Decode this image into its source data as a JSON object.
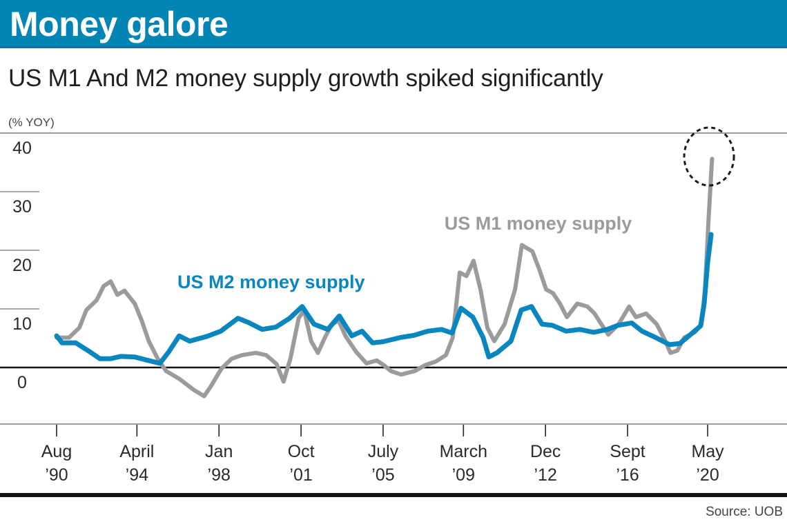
{
  "header": {
    "title": "Money galore",
    "color": "#0284b5"
  },
  "subtitle": "US M1 And M2 money supply growth spiked significantly",
  "source": "Source: UOB",
  "chart_data": {
    "type": "line",
    "title": "Money galore",
    "subtitle": "US M1 And M2 money supply growth spiked significantly",
    "xlabel": "",
    "ylabel": "(% YOY)",
    "ylim": [
      -10,
      40
    ],
    "xlim": [
      1989.5,
      2022.2
    ],
    "yticks": [
      0,
      10,
      20,
      30,
      40
    ],
    "ytick_labels": [
      "0",
      "10",
      "20",
      "30",
      "40"
    ],
    "xticks": [
      {
        "year": 1990.58,
        "line1": "Aug",
        "line2": "’90"
      },
      {
        "year": 1994.25,
        "line1": "April",
        "line2": "’94"
      },
      {
        "year": 1998.0,
        "line1": "Jan",
        "line2": "’98"
      },
      {
        "year": 2001.75,
        "line1": "Oct",
        "line2": "’01"
      },
      {
        "year": 2005.5,
        "line1": "July",
        "line2": "’05"
      },
      {
        "year": 2009.17,
        "line1": "March",
        "line2": "’09"
      },
      {
        "year": 2012.92,
        "line1": "Dec",
        "line2": "’12"
      },
      {
        "year": 2016.67,
        "line1": "Sept",
        "line2": "’16"
      },
      {
        "year": 2020.33,
        "line1": "May",
        "line2": "’20"
      }
    ],
    "grid": false,
    "annotation": {
      "type": "dashed-circle",
      "target": "US M1 money supply peak",
      "year": 2020.33,
      "value": 36
    },
    "series": [
      {
        "name": "US M1 money supply",
        "color": "#9b9b9b",
        "label_year": 2008.3,
        "label_value": 24.5,
        "points": [
          [
            1990.58,
            5.1
          ],
          [
            1991.15,
            5.1
          ],
          [
            1991.62,
            6.8
          ],
          [
            1991.94,
            9.8
          ],
          [
            1992.41,
            11.5
          ],
          [
            1992.73,
            13.9
          ],
          [
            1993.05,
            14.7
          ],
          [
            1993.36,
            12.4
          ],
          [
            1993.68,
            13.1
          ],
          [
            1994.15,
            10.9
          ],
          [
            1994.47,
            8.0
          ],
          [
            1994.79,
            4.5
          ],
          [
            1995.2,
            1.5
          ],
          [
            1995.58,
            -0.6
          ],
          [
            1996.21,
            -2.0
          ],
          [
            1996.84,
            -3.8
          ],
          [
            1997.32,
            -4.9
          ],
          [
            1997.63,
            -3.2
          ],
          [
            1998.11,
            -0.2
          ],
          [
            1998.58,
            1.5
          ],
          [
            1999.05,
            2.1
          ],
          [
            1999.68,
            2.5
          ],
          [
            2000.16,
            2.1
          ],
          [
            2000.63,
            0.6
          ],
          [
            2000.95,
            -2.4
          ],
          [
            2001.26,
            1.5
          ],
          [
            2001.64,
            8.4
          ],
          [
            2001.89,
            9.8
          ],
          [
            2002.21,
            4.5
          ],
          [
            2002.52,
            2.5
          ],
          [
            2002.84,
            5.1
          ],
          [
            2003.16,
            7.4
          ],
          [
            2003.47,
            8.0
          ],
          [
            2003.79,
            5.3
          ],
          [
            2004.26,
            2.7
          ],
          [
            2004.74,
            0.7
          ],
          [
            2005.21,
            1.2
          ],
          [
            2005.53,
            0.4
          ],
          [
            2005.85,
            -0.6
          ],
          [
            2006.32,
            -1.2
          ],
          [
            2006.95,
            -0.6
          ],
          [
            2007.42,
            0.4
          ],
          [
            2007.9,
            1.0
          ],
          [
            2008.37,
            2.1
          ],
          [
            2008.68,
            5.1
          ],
          [
            2009.0,
            16.2
          ],
          [
            2009.31,
            15.6
          ],
          [
            2009.63,
            18.2
          ],
          [
            2009.95,
            13.3
          ],
          [
            2010.26,
            6.8
          ],
          [
            2010.58,
            4.5
          ],
          [
            2011.05,
            7.4
          ],
          [
            2011.53,
            13.3
          ],
          [
            2011.84,
            20.9
          ],
          [
            2012.32,
            19.8
          ],
          [
            2012.63,
            16.8
          ],
          [
            2012.95,
            13.3
          ],
          [
            2013.26,
            12.7
          ],
          [
            2013.58,
            10.9
          ],
          [
            2013.9,
            8.6
          ],
          [
            2014.37,
            10.9
          ],
          [
            2014.84,
            10.4
          ],
          [
            2015.16,
            9.2
          ],
          [
            2015.47,
            7.4
          ],
          [
            2015.79,
            5.6
          ],
          [
            2016.26,
            7.4
          ],
          [
            2016.74,
            10.4
          ],
          [
            2017.05,
            8.6
          ],
          [
            2017.52,
            9.2
          ],
          [
            2018.0,
            7.4
          ],
          [
            2018.32,
            5.1
          ],
          [
            2018.63,
            2.5
          ],
          [
            2018.95,
            2.9
          ],
          [
            2019.26,
            5.1
          ],
          [
            2019.74,
            6.0
          ],
          [
            2020.05,
            7.4
          ],
          [
            2020.21,
            13.3
          ],
          [
            2020.37,
            25.1
          ],
          [
            2020.53,
            35.6
          ]
        ]
      },
      {
        "name": "US M2 money supply",
        "color": "#0a86bf",
        "label_year": 1996.1,
        "label_value": 14.5,
        "points": [
          [
            1990.58,
            5.4
          ],
          [
            1990.83,
            4.2
          ],
          [
            1991.46,
            4.2
          ],
          [
            1992.09,
            2.7
          ],
          [
            1992.56,
            1.5
          ],
          [
            1993.04,
            1.5
          ],
          [
            1993.51,
            1.9
          ],
          [
            1994.14,
            1.8
          ],
          [
            1994.77,
            1.2
          ],
          [
            1995.3,
            0.7
          ],
          [
            1995.71,
            2.7
          ],
          [
            1996.18,
            5.4
          ],
          [
            1996.66,
            4.5
          ],
          [
            1997.45,
            5.3
          ],
          [
            1998.08,
            6.2
          ],
          [
            1998.87,
            8.4
          ],
          [
            1999.34,
            7.7
          ],
          [
            1999.97,
            6.5
          ],
          [
            2000.6,
            6.9
          ],
          [
            2001.23,
            8.4
          ],
          [
            2001.8,
            10.4
          ],
          [
            2002.34,
            7.4
          ],
          [
            2002.97,
            6.5
          ],
          [
            2003.5,
            8.8
          ],
          [
            2004.07,
            5.4
          ],
          [
            2004.54,
            6.2
          ],
          [
            2005.02,
            4.2
          ],
          [
            2005.49,
            4.4
          ],
          [
            2006.28,
            5.1
          ],
          [
            2006.91,
            5.5
          ],
          [
            2007.54,
            6.2
          ],
          [
            2008.17,
            6.5
          ],
          [
            2008.65,
            5.9
          ],
          [
            2009.06,
            10.1
          ],
          [
            2009.6,
            8.6
          ],
          [
            2010.07,
            5.1
          ],
          [
            2010.33,
            1.8
          ],
          [
            2010.7,
            2.5
          ],
          [
            2011.34,
            4.5
          ],
          [
            2011.81,
            9.8
          ],
          [
            2012.28,
            10.4
          ],
          [
            2012.76,
            7.4
          ],
          [
            2013.23,
            7.2
          ],
          [
            2013.86,
            6.2
          ],
          [
            2014.49,
            6.5
          ],
          [
            2015.12,
            6.0
          ],
          [
            2015.75,
            6.5
          ],
          [
            2016.23,
            7.2
          ],
          [
            2016.86,
            7.6
          ],
          [
            2017.33,
            6.2
          ],
          [
            2017.96,
            5.1
          ],
          [
            2018.59,
            3.9
          ],
          [
            2019.06,
            4.1
          ],
          [
            2019.54,
            5.6
          ],
          [
            2020.01,
            7.1
          ],
          [
            2020.17,
            10.9
          ],
          [
            2020.33,
            18.0
          ],
          [
            2020.49,
            22.7
          ]
        ]
      }
    ]
  }
}
